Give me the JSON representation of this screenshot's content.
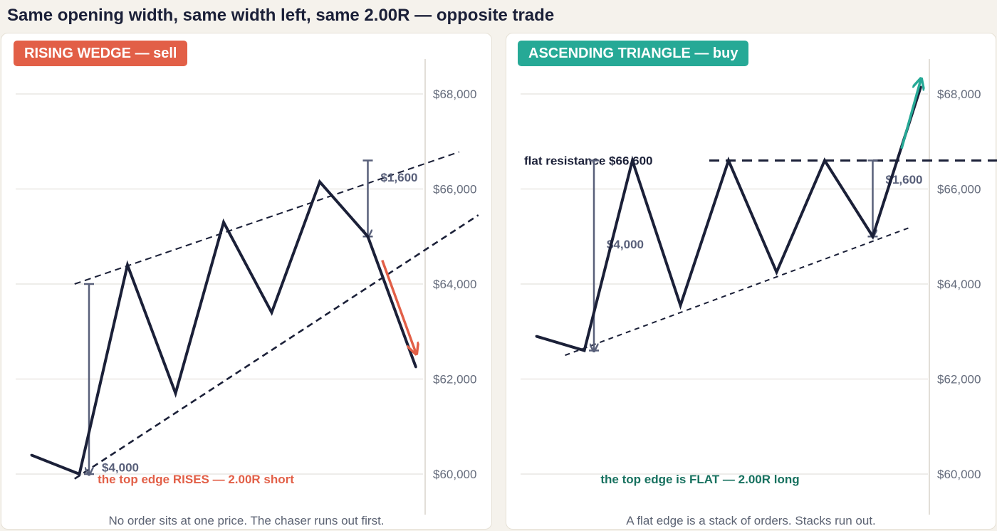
{
  "title": "Same opening width, same width left, same 2.00R — opposite trade",
  "colors": {
    "sell": "#e25f47",
    "buy": "#26a996",
    "buy_text": "#17715f",
    "price_line": "#1b2038",
    "measure": "#59607a",
    "axis_text": "#646b7b",
    "grid": "#e9e7e3"
  },
  "chart_data": [
    {
      "type": "line",
      "panel_label": "RISING WEDGE — sell",
      "caption": "No order sits at one price. The chaser runs out first.",
      "ylim": [
        59000,
        68800
      ],
      "yticks": [
        60000,
        62000,
        64000,
        66000,
        68000
      ],
      "ytick_labels": [
        "$60,000",
        "$62,000",
        "$64,000",
        "$66,000",
        "$68,000"
      ],
      "grid": true,
      "series": [
        {
          "role": "price",
          "points": [
            [
              0,
              60400
            ],
            [
              1,
              60000
            ],
            [
              2,
              64400
            ],
            [
              3,
              61700
            ],
            [
              4,
              65300
            ],
            [
              5,
              63400
            ],
            [
              6,
              66150
            ],
            [
              7,
              65000
            ],
            [
              8,
              62250
            ]
          ]
        }
      ],
      "trendlines": [
        {
          "role": "upper",
          "from": [
            0.9,
            64000
          ],
          "to": [
            8.9,
            66780
          ]
        },
        {
          "role": "lower",
          "from": [
            0.9,
            59900
          ],
          "to": [
            9.3,
            65450
          ]
        }
      ],
      "breakout_arrow": {
        "from": [
          7.3,
          64500
        ],
        "to": [
          8.0,
          62550
        ]
      },
      "measures": [
        {
          "label": "$4,000",
          "x": 1.2,
          "from": 64000,
          "to": 60000
        },
        {
          "label": "$1,600",
          "x": 7.0,
          "from": 66600,
          "to": 65000
        }
      ],
      "annotation": "the top edge RISES  —  2.00R short"
    },
    {
      "type": "line",
      "panel_label": "ASCENDING TRIANGLE — buy",
      "caption": "A flat edge is a stack of orders. Stacks run out.",
      "ylim": [
        59000,
        68800
      ],
      "yticks": [
        60000,
        62000,
        64000,
        66000,
        68000
      ],
      "ytick_labels": [
        "$60,000",
        "$62,000",
        "$64,000",
        "$66,000",
        "$68,000"
      ],
      "grid": true,
      "series": [
        {
          "role": "price",
          "points": [
            [
              0,
              62900
            ],
            [
              1,
              62600
            ],
            [
              2,
              66600
            ],
            [
              3,
              63550
            ],
            [
              4,
              66600
            ],
            [
              5,
              64250
            ],
            [
              6,
              66600
            ],
            [
              7,
              65000
            ],
            [
              8,
              68150
            ]
          ]
        }
      ],
      "trendlines": [
        {
          "role": "resistance",
          "from": [
            3.6,
            66600
          ],
          "to": [
            10.4,
            66600
          ]
        },
        {
          "role": "support",
          "from": [
            0.6,
            62500
          ],
          "to": [
            7.8,
            65200
          ]
        }
      ],
      "resistance_label": "flat resistance  $66,600",
      "breakout_arrow": {
        "from": [
          7.6,
          66850
        ],
        "to": [
          8.0,
          68300
        ]
      },
      "measures": [
        {
          "label": "$4,000",
          "x": 1.2,
          "from": 66600,
          "to": 62600
        },
        {
          "label": "$1,600",
          "x": 7.0,
          "from": 66600,
          "to": 65000
        }
      ],
      "annotation": "the top edge is FLAT  —  2.00R long"
    }
  ]
}
